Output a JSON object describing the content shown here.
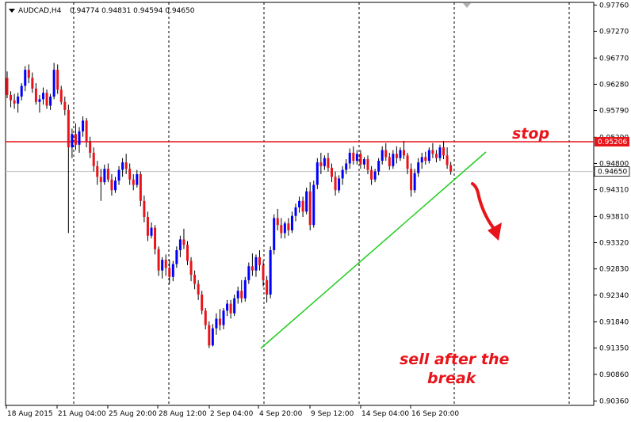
{
  "header": {
    "symbol_timeframe": "AUDCAD,H4",
    "ohlc": "0.94774 0.94831 0.94594 0.94650"
  },
  "colors": {
    "bull_candle": "#0000ff",
    "bear_candle": "#e8141a",
    "wick": "#000000",
    "stop_line": "#e8141a",
    "trendline": "#22cc22",
    "current_price_line": "#c0c0c0",
    "annotation": "#e8141a",
    "grid": "#000000"
  },
  "chart_data": {
    "type": "candlestick",
    "symbol": "AUDCAD",
    "timeframe": "H4",
    "y_axis": {
      "range": [
        0.9028,
        0.9781
      ],
      "ticks": [
        "0.97760",
        "0.97270",
        "0.96770",
        "0.96280",
        "0.95790",
        "0.95290",
        "0.94800",
        "0.94310",
        "0.93810",
        "0.93320",
        "0.92830",
        "0.92340",
        "0.91840",
        "0.91350",
        "0.90860",
        "0.90360"
      ]
    },
    "x_axis": {
      "tick_labels": [
        "18 Aug 2015",
        "21 Aug 04:00",
        "25 Aug 20:00",
        "28 Aug 12:00",
        "2 Sep 04:00",
        "4 Sep 20:00",
        "9 Sep 12:00",
        "14 Sep 04:00",
        "16 Sep 20:00"
      ],
      "dashed_separators": [
        "21 Aug 04:00",
        "28 Aug 12:00",
        "4 Sep 20:00",
        "14 Sep 04:00",
        "16 Sep 20:00",
        "future-1",
        "future-2"
      ]
    },
    "price_levels": {
      "stop": "0.95206",
      "current": "0.94650"
    },
    "candles": [
      {
        "o": 0.964,
        "h": 0.9652,
        "l": 0.9602,
        "c": 0.9608
      },
      {
        "o": 0.9608,
        "h": 0.9615,
        "l": 0.9585,
        "c": 0.9598
      },
      {
        "o": 0.9598,
        "h": 0.961,
        "l": 0.9582,
        "c": 0.9592
      },
      {
        "o": 0.9592,
        "h": 0.9612,
        "l": 0.9575,
        "c": 0.9605
      },
      {
        "o": 0.9605,
        "h": 0.963,
        "l": 0.9598,
        "c": 0.9625
      },
      {
        "o": 0.9625,
        "h": 0.9662,
        "l": 0.9615,
        "c": 0.9655
      },
      {
        "o": 0.9655,
        "h": 0.9665,
        "l": 0.963,
        "c": 0.964
      },
      {
        "o": 0.964,
        "h": 0.965,
        "l": 0.9612,
        "c": 0.962
      },
      {
        "o": 0.962,
        "h": 0.963,
        "l": 0.959,
        "c": 0.9595
      },
      {
        "o": 0.9595,
        "h": 0.9608,
        "l": 0.9575,
        "c": 0.96
      },
      {
        "o": 0.96,
        "h": 0.9622,
        "l": 0.959,
        "c": 0.9612
      },
      {
        "o": 0.9612,
        "h": 0.9618,
        "l": 0.9582,
        "c": 0.9588
      },
      {
        "o": 0.9588,
        "h": 0.961,
        "l": 0.958,
        "c": 0.9605
      },
      {
        "o": 0.9605,
        "h": 0.9668,
        "l": 0.96,
        "c": 0.9655
      },
      {
        "o": 0.9655,
        "h": 0.9665,
        "l": 0.961,
        "c": 0.9618
      },
      {
        "o": 0.9618,
        "h": 0.9625,
        "l": 0.959,
        "c": 0.9595
      },
      {
        "o": 0.9595,
        "h": 0.9605,
        "l": 0.957,
        "c": 0.958
      },
      {
        "o": 0.958,
        "h": 0.959,
        "l": 0.935,
        "c": 0.951
      },
      {
        "o": 0.951,
        "h": 0.9545,
        "l": 0.949,
        "c": 0.9535
      },
      {
        "o": 0.9535,
        "h": 0.9555,
        "l": 0.9505,
        "c": 0.9515
      },
      {
        "o": 0.9515,
        "h": 0.9548,
        "l": 0.95,
        "c": 0.954
      },
      {
        "o": 0.954,
        "h": 0.9568,
        "l": 0.953,
        "c": 0.956
      },
      {
        "o": 0.956,
        "h": 0.9565,
        "l": 0.951,
        "c": 0.952
      },
      {
        "o": 0.952,
        "h": 0.953,
        "l": 0.949,
        "c": 0.95
      },
      {
        "o": 0.95,
        "h": 0.951,
        "l": 0.9465,
        "c": 0.9475
      },
      {
        "o": 0.9475,
        "h": 0.9485,
        "l": 0.944,
        "c": 0.9455
      },
      {
        "o": 0.9455,
        "h": 0.947,
        "l": 0.941,
        "c": 0.9445
      },
      {
        "o": 0.9445,
        "h": 0.9478,
        "l": 0.944,
        "c": 0.947
      },
      {
        "o": 0.947,
        "h": 0.948,
        "l": 0.9445,
        "c": 0.945
      },
      {
        "o": 0.945,
        "h": 0.946,
        "l": 0.942,
        "c": 0.943
      },
      {
        "o": 0.943,
        "h": 0.9455,
        "l": 0.9425,
        "c": 0.9448
      },
      {
        "o": 0.9448,
        "h": 0.9475,
        "l": 0.944,
        "c": 0.9468
      },
      {
        "o": 0.9468,
        "h": 0.949,
        "l": 0.9455,
        "c": 0.9482
      },
      {
        "o": 0.9482,
        "h": 0.9498,
        "l": 0.946,
        "c": 0.947
      },
      {
        "o": 0.947,
        "h": 0.948,
        "l": 0.944,
        "c": 0.945
      },
      {
        "o": 0.945,
        "h": 0.946,
        "l": 0.943,
        "c": 0.944
      },
      {
        "o": 0.944,
        "h": 0.9468,
        "l": 0.9435,
        "c": 0.946
      },
      {
        "o": 0.946,
        "h": 0.9465,
        "l": 0.94,
        "c": 0.941
      },
      {
        "o": 0.941,
        "h": 0.942,
        "l": 0.937,
        "c": 0.938
      },
      {
        "o": 0.938,
        "h": 0.939,
        "l": 0.9335,
        "c": 0.9345
      },
      {
        "o": 0.9345,
        "h": 0.937,
        "l": 0.934,
        "c": 0.936
      },
      {
        "o": 0.936,
        "h": 0.9365,
        "l": 0.931,
        "c": 0.932
      },
      {
        "o": 0.932,
        "h": 0.9325,
        "l": 0.927,
        "c": 0.928
      },
      {
        "o": 0.928,
        "h": 0.9305,
        "l": 0.9265,
        "c": 0.93
      },
      {
        "o": 0.93,
        "h": 0.931,
        "l": 0.927,
        "c": 0.9285
      },
      {
        "o": 0.9285,
        "h": 0.93,
        "l": 0.9255,
        "c": 0.9268
      },
      {
        "o": 0.9268,
        "h": 0.9298,
        "l": 0.926,
        "c": 0.9292
      },
      {
        "o": 0.9292,
        "h": 0.9325,
        "l": 0.9285,
        "c": 0.9318
      },
      {
        "o": 0.9318,
        "h": 0.9345,
        "l": 0.9305,
        "c": 0.9338
      },
      {
        "o": 0.9338,
        "h": 0.9358,
        "l": 0.932,
        "c": 0.9328
      },
      {
        "o": 0.9328,
        "h": 0.9335,
        "l": 0.929,
        "c": 0.9298
      },
      {
        "o": 0.9298,
        "h": 0.9305,
        "l": 0.926,
        "c": 0.9272
      },
      {
        "o": 0.9272,
        "h": 0.928,
        "l": 0.9245,
        "c": 0.9255
      },
      {
        "o": 0.9255,
        "h": 0.9262,
        "l": 0.9225,
        "c": 0.9235
      },
      {
        "o": 0.9235,
        "h": 0.9242,
        "l": 0.9198,
        "c": 0.9205
      },
      {
        "o": 0.9205,
        "h": 0.921,
        "l": 0.917,
        "c": 0.9178
      },
      {
        "o": 0.9178,
        "h": 0.9185,
        "l": 0.9135,
        "c": 0.914
      },
      {
        "o": 0.914,
        "h": 0.918,
        "l": 0.9138,
        "c": 0.9172
      },
      {
        "o": 0.9172,
        "h": 0.92,
        "l": 0.916,
        "c": 0.919
      },
      {
        "o": 0.919,
        "h": 0.9208,
        "l": 0.9168,
        "c": 0.9178
      },
      {
        "o": 0.9178,
        "h": 0.921,
        "l": 0.917,
        "c": 0.9205
      },
      {
        "o": 0.9205,
        "h": 0.9225,
        "l": 0.9195,
        "c": 0.9218
      },
      {
        "o": 0.9218,
        "h": 0.9225,
        "l": 0.919,
        "c": 0.92
      },
      {
        "o": 0.92,
        "h": 0.9235,
        "l": 0.9195,
        "c": 0.9228
      },
      {
        "o": 0.9228,
        "h": 0.925,
        "l": 0.9218,
        "c": 0.9242
      },
      {
        "o": 0.9242,
        "h": 0.9262,
        "l": 0.922,
        "c": 0.9228
      },
      {
        "o": 0.9228,
        "h": 0.9268,
        "l": 0.9222,
        "c": 0.9262
      },
      {
        "o": 0.9262,
        "h": 0.9295,
        "l": 0.9255,
        "c": 0.9288
      },
      {
        "o": 0.9288,
        "h": 0.9312,
        "l": 0.927,
        "c": 0.928
      },
      {
        "o": 0.928,
        "h": 0.931,
        "l": 0.9268,
        "c": 0.9305
      },
      {
        "o": 0.9305,
        "h": 0.9318,
        "l": 0.928,
        "c": 0.929
      },
      {
        "o": 0.929,
        "h": 0.9298,
        "l": 0.925,
        "c": 0.9262
      },
      {
        "o": 0.9262,
        "h": 0.927,
        "l": 0.922,
        "c": 0.9235
      },
      {
        "o": 0.9235,
        "h": 0.9325,
        "l": 0.9228,
        "c": 0.9318
      },
      {
        "o": 0.9318,
        "h": 0.9385,
        "l": 0.931,
        "c": 0.9378
      },
      {
        "o": 0.9378,
        "h": 0.9395,
        "l": 0.9355,
        "c": 0.9365
      },
      {
        "o": 0.9365,
        "h": 0.9378,
        "l": 0.934,
        "c": 0.935
      },
      {
        "o": 0.935,
        "h": 0.9372,
        "l": 0.934,
        "c": 0.9368
      },
      {
        "o": 0.9368,
        "h": 0.9378,
        "l": 0.9345,
        "c": 0.9355
      },
      {
        "o": 0.9355,
        "h": 0.939,
        "l": 0.935,
        "c": 0.9382
      },
      {
        "o": 0.9382,
        "h": 0.9405,
        "l": 0.9372,
        "c": 0.9398
      },
      {
        "o": 0.9398,
        "h": 0.9418,
        "l": 0.9388,
        "c": 0.941
      },
      {
        "o": 0.941,
        "h": 0.9418,
        "l": 0.938,
        "c": 0.939
      },
      {
        "o": 0.939,
        "h": 0.9435,
        "l": 0.9385,
        "c": 0.9428
      },
      {
        "o": 0.9428,
        "h": 0.9445,
        "l": 0.9355,
        "c": 0.9365
      },
      {
        "o": 0.9365,
        "h": 0.9448,
        "l": 0.936,
        "c": 0.944
      },
      {
        "o": 0.944,
        "h": 0.949,
        "l": 0.9432,
        "c": 0.9482
      },
      {
        "o": 0.9482,
        "h": 0.95,
        "l": 0.946,
        "c": 0.9475
      },
      {
        "o": 0.9475,
        "h": 0.9495,
        "l": 0.9468,
        "c": 0.949
      },
      {
        "o": 0.949,
        "h": 0.95,
        "l": 0.9465,
        "c": 0.9472
      },
      {
        "o": 0.9472,
        "h": 0.948,
        "l": 0.9445,
        "c": 0.9455
      },
      {
        "o": 0.9455,
        "h": 0.9465,
        "l": 0.942,
        "c": 0.943
      },
      {
        "o": 0.943,
        "h": 0.9458,
        "l": 0.9425,
        "c": 0.9452
      },
      {
        "o": 0.9452,
        "h": 0.9475,
        "l": 0.944,
        "c": 0.9468
      },
      {
        "o": 0.9468,
        "h": 0.9488,
        "l": 0.946,
        "c": 0.948
      },
      {
        "o": 0.948,
        "h": 0.9508,
        "l": 0.947,
        "c": 0.95
      },
      {
        "o": 0.95,
        "h": 0.9512,
        "l": 0.9478,
        "c": 0.9485
      },
      {
        "o": 0.9485,
        "h": 0.9505,
        "l": 0.9478,
        "c": 0.9498
      },
      {
        "o": 0.9498,
        "h": 0.9505,
        "l": 0.947,
        "c": 0.9478
      },
      {
        "o": 0.9478,
        "h": 0.9492,
        "l": 0.947,
        "c": 0.9488
      },
      {
        "o": 0.9488,
        "h": 0.9495,
        "l": 0.946,
        "c": 0.9468
      },
      {
        "o": 0.9468,
        "h": 0.9475,
        "l": 0.944,
        "c": 0.945
      },
      {
        "o": 0.945,
        "h": 0.947,
        "l": 0.9445,
        "c": 0.9465
      },
      {
        "o": 0.9465,
        "h": 0.949,
        "l": 0.9458,
        "c": 0.9485
      },
      {
        "o": 0.9485,
        "h": 0.9512,
        "l": 0.9478,
        "c": 0.9505
      },
      {
        "o": 0.9505,
        "h": 0.9518,
        "l": 0.9485,
        "c": 0.9492
      },
      {
        "o": 0.9492,
        "h": 0.95,
        "l": 0.9468,
        "c": 0.9475
      },
      {
        "o": 0.9475,
        "h": 0.9505,
        "l": 0.947,
        "c": 0.9498
      },
      {
        "o": 0.9498,
        "h": 0.9512,
        "l": 0.948,
        "c": 0.949
      },
      {
        "o": 0.949,
        "h": 0.951,
        "l": 0.9485,
        "c": 0.9505
      },
      {
        "o": 0.9505,
        "h": 0.9522,
        "l": 0.9488,
        "c": 0.9495
      },
      {
        "o": 0.9495,
        "h": 0.95,
        "l": 0.946,
        "c": 0.947
      },
      {
        "o": 0.947,
        "h": 0.948,
        "l": 0.9418,
        "c": 0.943
      },
      {
        "o": 0.943,
        "h": 0.947,
        "l": 0.9425,
        "c": 0.9462
      },
      {
        "o": 0.9462,
        "h": 0.949,
        "l": 0.9455,
        "c": 0.9482
      },
      {
        "o": 0.9482,
        "h": 0.95,
        "l": 0.947,
        "c": 0.9492
      },
      {
        "o": 0.9492,
        "h": 0.9502,
        "l": 0.9478,
        "c": 0.9485
      },
      {
        "o": 0.9485,
        "h": 0.951,
        "l": 0.948,
        "c": 0.9505
      },
      {
        "o": 0.9505,
        "h": 0.9518,
        "l": 0.949,
        "c": 0.9498
      },
      {
        "o": 0.9498,
        "h": 0.9505,
        "l": 0.9482,
        "c": 0.949
      },
      {
        "o": 0.949,
        "h": 0.9515,
        "l": 0.9485,
        "c": 0.951
      },
      {
        "o": 0.951,
        "h": 0.9522,
        "l": 0.9488,
        "c": 0.9495
      },
      {
        "o": 0.9495,
        "h": 0.951,
        "l": 0.947,
        "c": 0.9477
      },
      {
        "o": 0.9477,
        "h": 0.9483,
        "l": 0.9459,
        "c": 0.9465
      }
    ]
  },
  "annotations": {
    "stop_label": "stop",
    "sell_line_1": "sell after the",
    "sell_line_2": "break"
  }
}
